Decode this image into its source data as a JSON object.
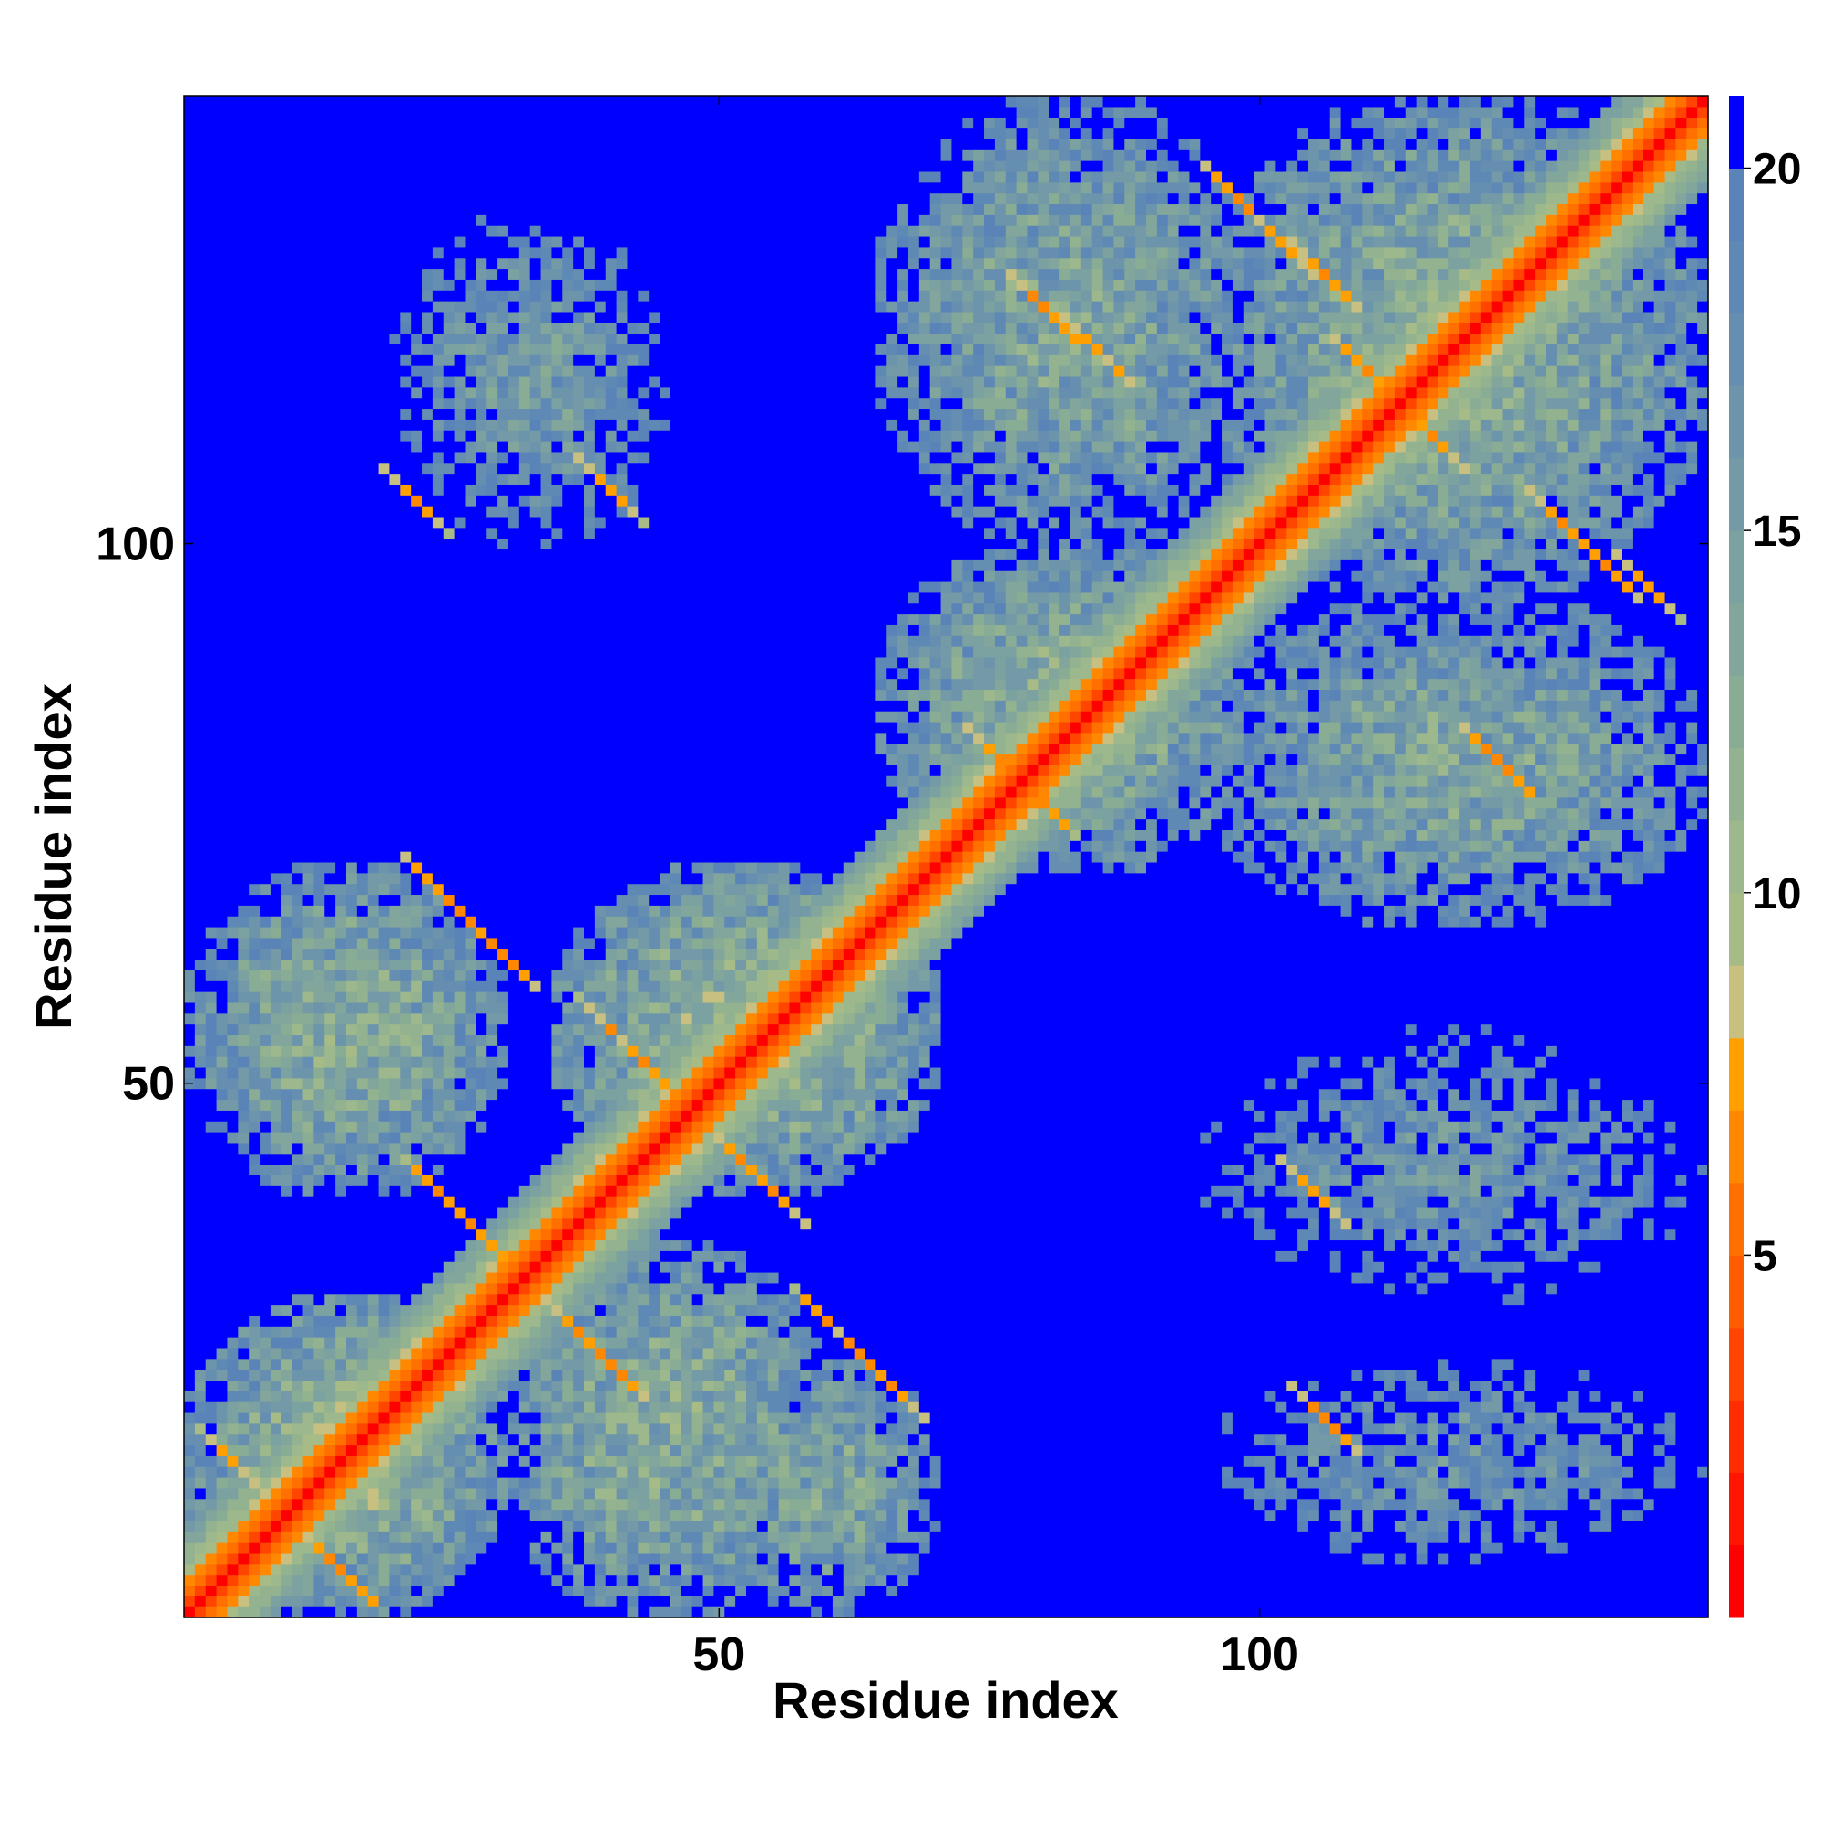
{
  "chart_data": {
    "type": "heatmap",
    "title": "",
    "xlabel": "Residue index",
    "ylabel": "Residue index",
    "n_residues": 141,
    "xlim": [
      1,
      141
    ],
    "ylim": [
      1,
      141
    ],
    "x_ticks": [
      50,
      100
    ],
    "y_ticks": [
      50,
      100
    ],
    "colorbar": {
      "range": [
        0,
        21
      ],
      "ticks": [
        5,
        10,
        15,
        20
      ],
      "levels": [
        {
          "max": 1,
          "color": "#ff0000"
        },
        {
          "max": 2,
          "color": "#ff1500"
        },
        {
          "max": 3,
          "color": "#ff2d00"
        },
        {
          "max": 4,
          "color": "#ff4500"
        },
        {
          "max": 5,
          "color": "#ff5c00"
        },
        {
          "max": 6,
          "color": "#ff7000"
        },
        {
          "max": 7,
          "color": "#ff8800"
        },
        {
          "max": 8,
          "color": "#ffa000"
        },
        {
          "max": 9,
          "color": "#c7c080"
        },
        {
          "max": 10,
          "color": "#a7bb87"
        },
        {
          "max": 11,
          "color": "#9db88c"
        },
        {
          "max": 12,
          "color": "#93b28f"
        },
        {
          "max": 13,
          "color": "#89ac95"
        },
        {
          "max": 14,
          "color": "#82a69b"
        },
        {
          "max": 15,
          "color": "#7ba1a1"
        },
        {
          "max": 16,
          "color": "#739aa6"
        },
        {
          "max": 17,
          "color": "#6c94ab"
        },
        {
          "max": 18,
          "color": "#658eb0"
        },
        {
          "max": 19,
          "color": "#5f89b5"
        },
        {
          "max": 20,
          "color": "#5a84b8"
        },
        {
          "max": 21,
          "color": "#0000ff"
        }
      ]
    },
    "diagonal_band_distances": [
      3.8,
      5.5,
      6.5
    ],
    "contact_regions": [
      {
        "r1": [
          1,
          30
        ],
        "r2": [
          1,
          30
        ],
        "mean_distance": 12
      },
      {
        "r1": [
          30,
          60
        ],
        "r2": [
          1,
          35
        ],
        "mean_distance": 13
      },
      {
        "r1": [
          1,
          30
        ],
        "r2": [
          40,
          70
        ],
        "mean_distance": 13
      },
      {
        "r1": [
          35,
          70
        ],
        "r2": [
          40,
          70
        ],
        "mean_distance": 12
      },
      {
        "r1": [
          50,
          70
        ],
        "r2": [
          1,
          25
        ],
        "mean_distance": 14
      },
      {
        "r1": [
          65,
          100
        ],
        "r2": [
          70,
          100
        ],
        "mean_distance": 13
      },
      {
        "r1": [
          65,
          100
        ],
        "r2": [
          100,
          141
        ],
        "mean_distance": 14
      },
      {
        "r1": [
          95,
          141
        ],
        "r2": [
          95,
          141
        ],
        "mean_distance": 13
      },
      {
        "r1": [
          95,
          141
        ],
        "r2": [
          65,
          95
        ],
        "mean_distance": 14
      },
      {
        "r1": [
          20,
          45
        ],
        "r2": [
          100,
          130
        ],
        "mean_distance": 16
      },
      {
        "r1": [
          95,
          141
        ],
        "r2": [
          30,
          55
        ],
        "mean_distance": 17
      },
      {
        "r1": [
          95,
          141
        ],
        "r2": [
          5,
          25
        ],
        "mean_distance": 17
      }
    ],
    "close_contacts": [
      {
        "i": 24,
        "j": 68,
        "d": 6.5
      },
      {
        "i": 26,
        "j": 66,
        "d": 6
      },
      {
        "i": 28,
        "j": 64,
        "d": 6.5
      },
      {
        "i": 30,
        "j": 62,
        "d": 6
      },
      {
        "i": 40,
        "j": 55,
        "d": 6.5
      },
      {
        "i": 43,
        "j": 52,
        "d": 6
      },
      {
        "i": 52,
        "j": 43,
        "d": 6.5
      },
      {
        "i": 55,
        "j": 40,
        "d": 6
      },
      {
        "i": 24,
        "j": 40,
        "d": 6.5
      },
      {
        "i": 27,
        "j": 37,
        "d": 6
      },
      {
        "i": 37,
        "j": 27,
        "d": 6.5
      },
      {
        "i": 40,
        "j": 24,
        "d": 6
      },
      {
        "i": 60,
        "j": 28,
        "d": 6.5
      },
      {
        "i": 63,
        "j": 25,
        "d": 6
      },
      {
        "i": 66,
        "j": 22,
        "d": 6.5
      },
      {
        "i": 76,
        "j": 80,
        "d": 6
      },
      {
        "i": 80,
        "j": 76,
        "d": 6.5
      },
      {
        "i": 98,
        "j": 132,
        "d": 6
      },
      {
        "i": 102,
        "j": 128,
        "d": 6.5
      },
      {
        "i": 106,
        "j": 125,
        "d": 6
      },
      {
        "i": 128,
        "j": 102,
        "d": 6.5
      },
      {
        "i": 132,
        "j": 98,
        "d": 6
      },
      {
        "i": 136,
        "j": 96,
        "d": 6.5
      },
      {
        "i": 110,
        "j": 116,
        "d": 6
      },
      {
        "i": 116,
        "j": 110,
        "d": 6.5
      },
      {
        "i": 80,
        "j": 122,
        "d": 6
      },
      {
        "i": 85,
        "j": 118,
        "d": 6.5
      },
      {
        "i": 122,
        "j": 80,
        "d": 6
      },
      {
        "i": 5,
        "j": 15,
        "d": 6.5
      },
      {
        "i": 15,
        "j": 5,
        "d": 6
      },
      {
        "i": 105,
        "j": 40,
        "d": 6.5
      },
      {
        "i": 40,
        "j": 105,
        "d": 6.5
      },
      {
        "i": 106,
        "j": 19,
        "d": 6
      },
      {
        "i": 22,
        "j": 104,
        "d": 6.5
      }
    ],
    "grid": false
  }
}
